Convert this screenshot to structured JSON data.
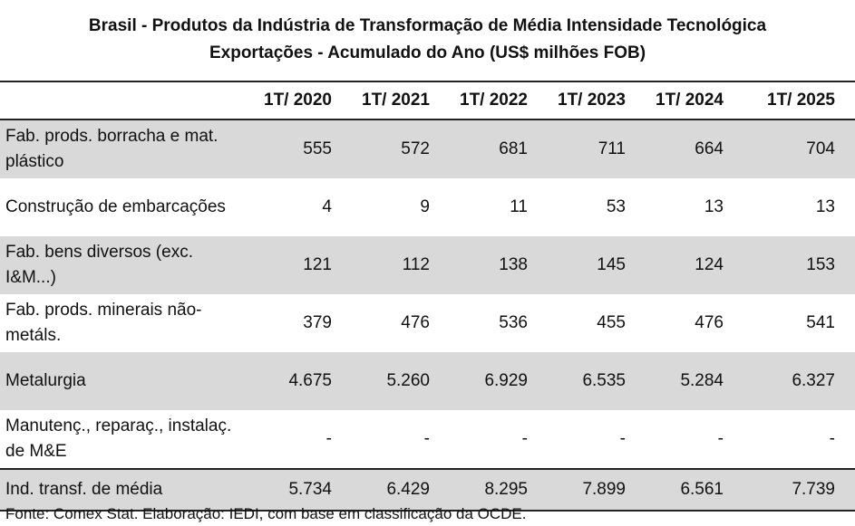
{
  "title_line1": "Brasil - Produtos da Indústria de Transformação de Média Intensidade Tecnológica",
  "title_line2": "Exportações - Acumulado do Ano (US$ milhões FOB)",
  "columns": [
    "",
    "1T/ 2020",
    "1T/ 2021",
    "1T/ 2022",
    "1T/ 2023",
    "1T/ 2024",
    "1T/ 2025"
  ],
  "rows": [
    {
      "label": "Fab. prods. borracha e mat. plástico",
      "values": [
        "555",
        "572",
        "681",
        "711",
        "664",
        "704"
      ]
    },
    {
      "label": "Construção de embarcações",
      "values": [
        "4",
        "9",
        "11",
        "53",
        "13",
        "13"
      ]
    },
    {
      "label": "Fab. bens diversos (exc. I&M...)",
      "values": [
        "121",
        "112",
        "138",
        "145",
        "124",
        "153"
      ]
    },
    {
      "label": "Fab. prods. minerais não-metáls.",
      "values": [
        "379",
        "476",
        "536",
        "455",
        "476",
        "541"
      ]
    },
    {
      "label": "Metalurgia",
      "values": [
        "4.675",
        "5.260",
        "6.929",
        "6.535",
        "5.284",
        "6.327"
      ]
    },
    {
      "label": "Manutenç., reparaç., instalaç. de M&E",
      "values": [
        "-",
        "-",
        "-",
        "-",
        "-",
        "-"
      ]
    },
    {
      "label": "Ind. transf. de média",
      "values": [
        "5.734",
        "6.429",
        "8.295",
        "7.899",
        "6.561",
        "7.739"
      ]
    }
  ],
  "source": "Fonte: Comex Stat. Elaboração: IEDI, com base em classificação da OCDE.",
  "colors": {
    "shade": "#d9d9d9",
    "rule": "#222222"
  }
}
